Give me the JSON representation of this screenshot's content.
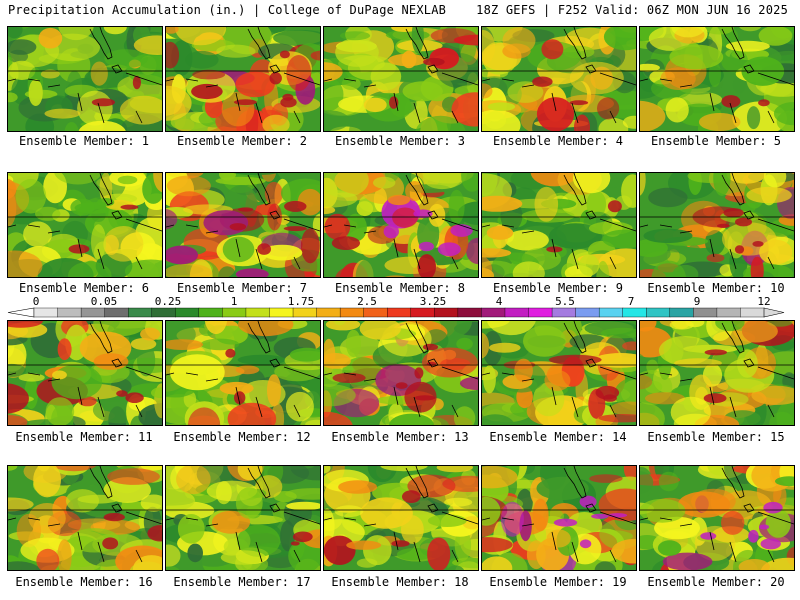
{
  "header": {
    "left": "Precipitation Accumulation (in.) | College of DuPage NEXLAB",
    "right": "18Z GEFS | F252 Valid: 06Z MON JUN 16 2025"
  },
  "colorbar": {
    "ticks": [
      "0",
      "0.05",
      "0.25",
      "1",
      "1.75",
      "2.5",
      "3.25",
      "4",
      "5.5",
      "7",
      "9",
      "12"
    ],
    "colors": [
      "#e6e6e6",
      "#bdbdbd",
      "#969696",
      "#6e6e6e",
      "#3a8a4a",
      "#2f6e36",
      "#2b8a2b",
      "#4fb21b",
      "#8acb16",
      "#c3e01a",
      "#f5f51e",
      "#f2d21a",
      "#f3ae16",
      "#f38a12",
      "#f1621a",
      "#ee3a1e",
      "#d61a20",
      "#b3121e",
      "#8e0e3c",
      "#a11a7a",
      "#c21ec2",
      "#e01ee0",
      "#a47be0",
      "#7a9cf0",
      "#5ad2f0",
      "#24e6e6",
      "#2fc4c4",
      "#2aa4a4",
      "#909090",
      "#b5b5b5",
      "#d9d9d9"
    ]
  },
  "members": [
    {
      "label": "Ensemble Member: 1"
    },
    {
      "label": "Ensemble Member: 2"
    },
    {
      "label": "Ensemble Member: 3"
    },
    {
      "label": "Ensemble Member: 4"
    },
    {
      "label": "Ensemble Member: 5"
    },
    {
      "label": "Ensemble Member: 6"
    },
    {
      "label": "Ensemble Member: 7"
    },
    {
      "label": "Ensemble Member: 8"
    },
    {
      "label": "Ensemble Member: 9"
    },
    {
      "label": "Ensemble Member: 10"
    },
    {
      "label": "Ensemble Member: 11"
    },
    {
      "label": "Ensemble Member: 12"
    },
    {
      "label": "Ensemble Member: 13"
    },
    {
      "label": "Ensemble Member: 14"
    },
    {
      "label": "Ensemble Member: 15"
    },
    {
      "label": "Ensemble Member: 16"
    },
    {
      "label": "Ensemble Member: 17"
    },
    {
      "label": "Ensemble Member: 18"
    },
    {
      "label": "Ensemble Member: 19"
    },
    {
      "label": "Ensemble Member: 20"
    }
  ]
}
